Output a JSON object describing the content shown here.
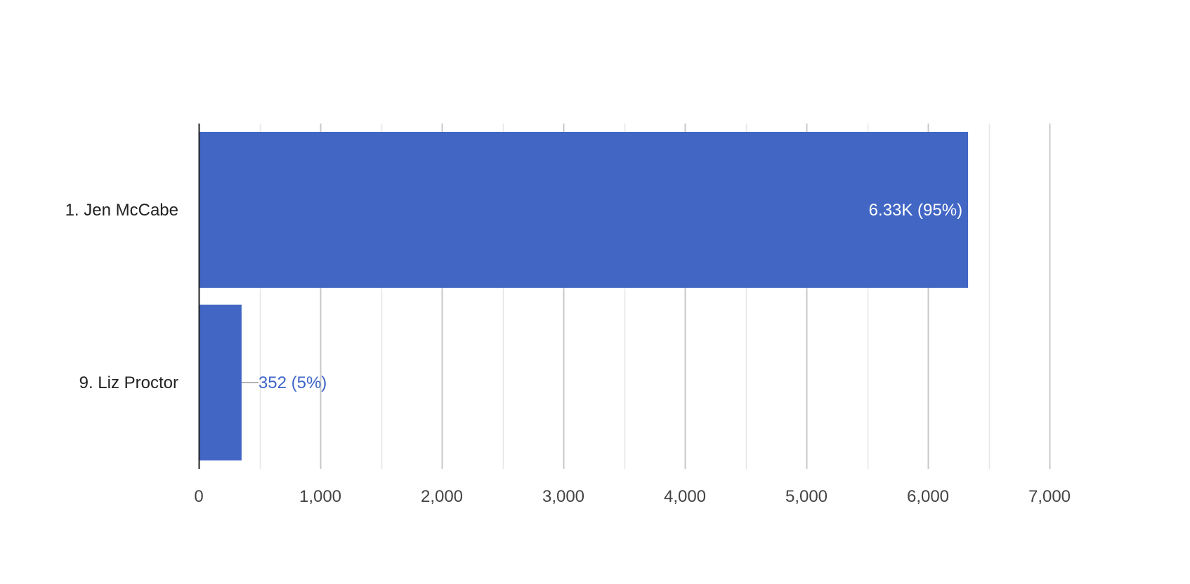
{
  "chart_data": {
    "type": "bar",
    "orientation": "horizontal",
    "categories": [
      "1. Jen McCabe",
      "9. Liz Proctor"
    ],
    "values": [
      6330,
      352
    ],
    "data_labels": [
      "6.33K (95%)",
      "352 (5%)"
    ],
    "xlim": [
      0,
      7000
    ],
    "x_ticks": [
      0,
      1000,
      2000,
      3000,
      4000,
      5000,
      6000,
      7000
    ],
    "x_tick_labels": [
      "0",
      "1,000",
      "2,000",
      "3,000",
      "4,000",
      "5,000",
      "6,000",
      "7,000"
    ],
    "grid": true,
    "legend": "none"
  },
  "colors": {
    "bar": "#4166c4",
    "label_inside": "#ffffff",
    "label_outside": "#3c64c8",
    "major_grid": "#c8c8c8",
    "minor_grid": "#e6e6e6",
    "axis": "#222222"
  }
}
